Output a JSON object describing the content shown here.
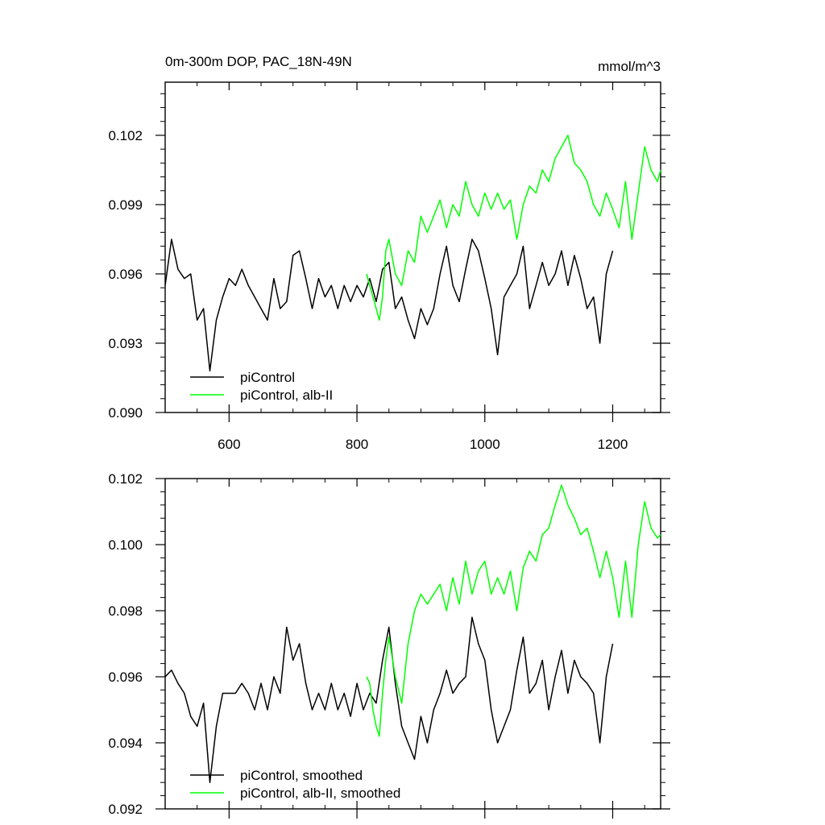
{
  "chart_data": [
    {
      "type": "line",
      "title": "0m-300m DOP, PAC_18N-49N",
      "units": "mmol/m^3",
      "xlim": [
        500,
        1275
      ],
      "ylim": [
        0.09,
        0.1043
      ],
      "xticks": [
        600,
        800,
        1000,
        1200
      ],
      "xtick_labels": [
        "600",
        "800",
        "1000",
        "1200"
      ],
      "yticks": [
        0.09,
        0.093,
        0.096,
        0.099,
        0.102
      ],
      "ytick_labels": [
        "0.090",
        "0.093",
        "0.096",
        "0.099",
        "0.102"
      ],
      "grid": false,
      "legend_position": "bottom-left",
      "series": [
        {
          "name": "piControl",
          "color": "#000000",
          "x": [
            500,
            510,
            520,
            530,
            540,
            550,
            560,
            570,
            580,
            590,
            600,
            610,
            620,
            630,
            640,
            650,
            660,
            670,
            680,
            690,
            700,
            710,
            720,
            730,
            740,
            750,
            760,
            770,
            780,
            790,
            800,
            810,
            820,
            830,
            840,
            850,
            860,
            870,
            880,
            890,
            900,
            910,
            920,
            930,
            940,
            950,
            960,
            970,
            980,
            990,
            1000,
            1010,
            1020,
            1030,
            1040,
            1050,
            1060,
            1070,
            1080,
            1090,
            1100,
            1110,
            1120,
            1130,
            1140,
            1150,
            1160,
            1170,
            1180,
            1190,
            1200
          ],
          "values": [
            0.0955,
            0.0975,
            0.0962,
            0.0958,
            0.096,
            0.094,
            0.0945,
            0.0918,
            0.094,
            0.095,
            0.0958,
            0.0955,
            0.0962,
            0.0955,
            0.095,
            0.0945,
            0.094,
            0.0958,
            0.0945,
            0.0948,
            0.0968,
            0.097,
            0.0958,
            0.0945,
            0.0958,
            0.095,
            0.0955,
            0.0945,
            0.0955,
            0.0948,
            0.0955,
            0.095,
            0.0958,
            0.0948,
            0.0962,
            0.0965,
            0.0945,
            0.095,
            0.094,
            0.0932,
            0.0945,
            0.0938,
            0.0945,
            0.096,
            0.0972,
            0.0955,
            0.0948,
            0.0962,
            0.0975,
            0.097,
            0.0958,
            0.0945,
            0.0925,
            0.095,
            0.0955,
            0.096,
            0.0972,
            0.0945,
            0.0955,
            0.0965,
            0.0955,
            0.096,
            0.097,
            0.0955,
            0.0968,
            0.0958,
            0.0945,
            0.095,
            0.093,
            0.096,
            0.097
          ]
        },
        {
          "name": "piControl, alb-II",
          "color": "#00ff00",
          "x": [
            815,
            820,
            825,
            830,
            835,
            840,
            845,
            850,
            860,
            870,
            880,
            890,
            900,
            910,
            920,
            930,
            940,
            950,
            960,
            970,
            980,
            990,
            1000,
            1010,
            1020,
            1030,
            1040,
            1050,
            1060,
            1070,
            1080,
            1090,
            1100,
            1110,
            1120,
            1130,
            1140,
            1150,
            1160,
            1170,
            1180,
            1190,
            1200,
            1210,
            1220,
            1230,
            1240,
            1250,
            1260,
            1270,
            1275
          ],
          "values": [
            0.096,
            0.0955,
            0.095,
            0.0945,
            0.094,
            0.095,
            0.097,
            0.0975,
            0.096,
            0.0955,
            0.097,
            0.0965,
            0.0985,
            0.0978,
            0.0985,
            0.0992,
            0.098,
            0.099,
            0.0985,
            0.1,
            0.099,
            0.0985,
            0.0995,
            0.0988,
            0.0995,
            0.0988,
            0.0992,
            0.0975,
            0.099,
            0.0998,
            0.0995,
            0.1005,
            0.1,
            0.101,
            0.1015,
            0.102,
            0.1008,
            0.1005,
            0.1,
            0.099,
            0.0985,
            0.0995,
            0.0988,
            0.098,
            0.1,
            0.0975,
            0.0995,
            0.1015,
            0.1005,
            0.1,
            0.1005
          ]
        }
      ]
    },
    {
      "type": "line",
      "xlim": [
        500,
        1275
      ],
      "ylim": [
        0.092,
        0.102
      ],
      "xticks": [
        600,
        800,
        1000,
        1200
      ],
      "xtick_labels": [],
      "yticks": [
        0.092,
        0.094,
        0.096,
        0.098,
        0.1,
        0.102
      ],
      "ytick_labels": [
        "0.092",
        "0.094",
        "0.096",
        "0.098",
        "0.100",
        "0.102"
      ],
      "grid": false,
      "legend_position": "bottom-left",
      "series": [
        {
          "name": "piControl, smoothed",
          "color": "#000000",
          "x": [
            500,
            510,
            520,
            530,
            540,
            550,
            560,
            570,
            580,
            590,
            600,
            610,
            620,
            630,
            640,
            650,
            660,
            670,
            680,
            690,
            700,
            710,
            720,
            730,
            740,
            750,
            760,
            770,
            780,
            790,
            800,
            810,
            820,
            830,
            840,
            850,
            860,
            870,
            880,
            890,
            900,
            910,
            920,
            930,
            940,
            950,
            960,
            970,
            980,
            990,
            1000,
            1010,
            1020,
            1030,
            1040,
            1050,
            1060,
            1070,
            1080,
            1090,
            1100,
            1110,
            1120,
            1130,
            1140,
            1150,
            1160,
            1170,
            1180,
            1190,
            1200
          ],
          "values": [
            0.096,
            0.0962,
            0.0958,
            0.0955,
            0.0948,
            0.0945,
            0.0952,
            0.0928,
            0.0945,
            0.0955,
            0.0955,
            0.0955,
            0.0958,
            0.0955,
            0.095,
            0.0958,
            0.095,
            0.096,
            0.0955,
            0.0975,
            0.0965,
            0.097,
            0.0958,
            0.095,
            0.0955,
            0.095,
            0.0958,
            0.095,
            0.0955,
            0.0948,
            0.0958,
            0.095,
            0.0955,
            0.0952,
            0.0965,
            0.0975,
            0.0958,
            0.0945,
            0.094,
            0.0935,
            0.0948,
            0.094,
            0.095,
            0.0955,
            0.0962,
            0.0955,
            0.0958,
            0.096,
            0.0978,
            0.097,
            0.0965,
            0.095,
            0.094,
            0.0945,
            0.095,
            0.0962,
            0.0972,
            0.0955,
            0.0958,
            0.0965,
            0.095,
            0.096,
            0.0968,
            0.0955,
            0.0965,
            0.096,
            0.0958,
            0.0955,
            0.094,
            0.096,
            0.097
          ]
        },
        {
          "name": "piControl, alb-II, smoothed",
          "color": "#00ff00",
          "x": [
            815,
            820,
            825,
            830,
            835,
            840,
            845,
            850,
            860,
            870,
            880,
            890,
            900,
            910,
            920,
            930,
            940,
            950,
            960,
            970,
            980,
            990,
            1000,
            1010,
            1020,
            1030,
            1040,
            1050,
            1060,
            1070,
            1080,
            1090,
            1100,
            1110,
            1120,
            1130,
            1140,
            1150,
            1160,
            1170,
            1180,
            1190,
            1200,
            1210,
            1220,
            1230,
            1240,
            1250,
            1260,
            1270,
            1275
          ],
          "values": [
            0.096,
            0.0958,
            0.095,
            0.0945,
            0.0942,
            0.0955,
            0.0965,
            0.0972,
            0.096,
            0.0952,
            0.097,
            0.098,
            0.0985,
            0.0982,
            0.0985,
            0.0988,
            0.098,
            0.099,
            0.0982,
            0.0995,
            0.0985,
            0.0992,
            0.0995,
            0.0985,
            0.099,
            0.0985,
            0.0992,
            0.098,
            0.0993,
            0.0998,
            0.0995,
            0.1003,
            0.1005,
            0.1012,
            0.1018,
            0.1012,
            0.1008,
            0.1003,
            0.1005,
            0.0998,
            0.099,
            0.0998,
            0.099,
            0.0978,
            0.0995,
            0.0978,
            0.1,
            0.1013,
            0.1005,
            0.1002,
            0.1003
          ]
        }
      ]
    }
  ]
}
